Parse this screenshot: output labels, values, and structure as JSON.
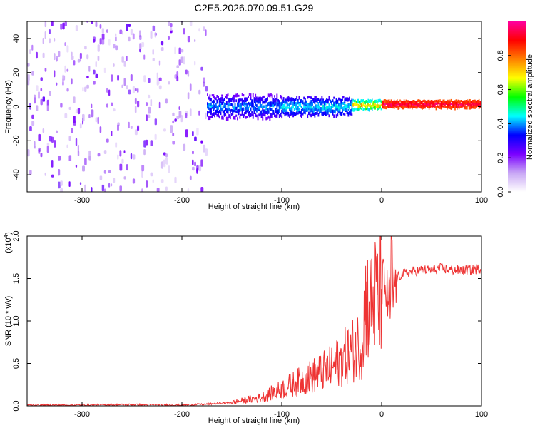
{
  "figure": {
    "title": "C2E5.2026.070.09.51.G29"
  },
  "chart_data": [
    {
      "type": "heatmap",
      "title": "C2E5.2026.070.09.51.G29",
      "xlabel": "Height of straight line (km)",
      "ylabel": "Frequency (Hz)",
      "xlim": [
        -355,
        100
      ],
      "ylim": [
        -50,
        50
      ],
      "xticks": [
        -300,
        -200,
        -100,
        0,
        100
      ],
      "yticks": [
        -40,
        -20,
        0,
        20,
        40
      ],
      "grid": false,
      "colorbar": {
        "label": "Normalized spectral amplitude",
        "range": [
          0.0,
          1.0
        ],
        "ticks": [
          "0.0",
          "0.2",
          "0.4",
          "0.6",
          "0.8"
        ],
        "colormap": [
          "#ffffff",
          "#c8a6f5",
          "#7a00ff",
          "#0000ff",
          "#00ffff",
          "#00ff00",
          "#ffff00",
          "#ff8000",
          "#ff0000",
          "#ff00a0"
        ]
      },
      "regions": [
        {
          "x": [
            -355,
            -175
          ],
          "freq_center": 0,
          "freq_halfwidth": 50,
          "amplitude": [
            0.05,
            0.25
          ],
          "pattern": "noise"
        },
        {
          "x": [
            -175,
            -100
          ],
          "freq_center": 0,
          "freq_halfwidth": 5,
          "amplitude": [
            0.2,
            0.45
          ],
          "pattern": "band"
        },
        {
          "x": [
            -100,
            -30
          ],
          "freq_center": 0,
          "freq_halfwidth": 4,
          "amplitude": [
            0.25,
            0.5
          ],
          "pattern": "band"
        },
        {
          "x": [
            -30,
            0
          ],
          "freq_center": 1,
          "freq_halfwidth": 2,
          "amplitude": [
            0.4,
            0.8
          ],
          "pattern": "line"
        },
        {
          "x": [
            0,
            100
          ],
          "freq_center": 1.5,
          "freq_halfwidth": 1.5,
          "amplitude": [
            0.8,
            1.0
          ],
          "pattern": "line"
        }
      ]
    },
    {
      "type": "line",
      "xlabel": "Height of straight line (km)",
      "ylabel": "SNR (10 * v/v)",
      "y_multiplier": "(x10",
      "y_multiplier_exp": "4",
      "y_multiplier_close": ")",
      "xlim": [
        -355,
        100
      ],
      "ylim": [
        0,
        2.0
      ],
      "xticks": [
        -300,
        -200,
        -100,
        0,
        100
      ],
      "yticks": [
        "0.0",
        "0.5",
        "1.0",
        "1.5",
        "2.0"
      ],
      "grid": false,
      "line_color": "#ee3333",
      "series": [
        {
          "x": [
            -355,
            -300,
            -250,
            -200,
            -175,
            -150,
            -130,
            -120,
            -110,
            -100,
            -90,
            -80,
            -70,
            -60,
            -50,
            -40,
            -30,
            -25,
            -20,
            -17,
            -15,
            -12,
            -10,
            -8,
            -5,
            -3,
            0,
            3,
            5,
            8,
            10,
            12,
            15,
            20,
            30,
            40,
            50,
            60,
            70,
            80,
            90,
            100
          ],
          "y": [
            0.01,
            0.01,
            0.015,
            0.01,
            0.02,
            0.04,
            0.08,
            0.1,
            0.15,
            0.2,
            0.25,
            0.3,
            0.35,
            0.4,
            0.45,
            0.55,
            0.65,
            0.7,
            0.75,
            1.1,
            1.3,
            1.1,
            1.25,
            1.2,
            1.35,
            1.1,
            1.45,
            1.4,
            1.3,
            1.2,
            1.0,
            1.4,
            1.5,
            1.55,
            1.58,
            1.6,
            1.6,
            1.62,
            1.6,
            1.6,
            1.6,
            1.62
          ]
        }
      ]
    }
  ]
}
